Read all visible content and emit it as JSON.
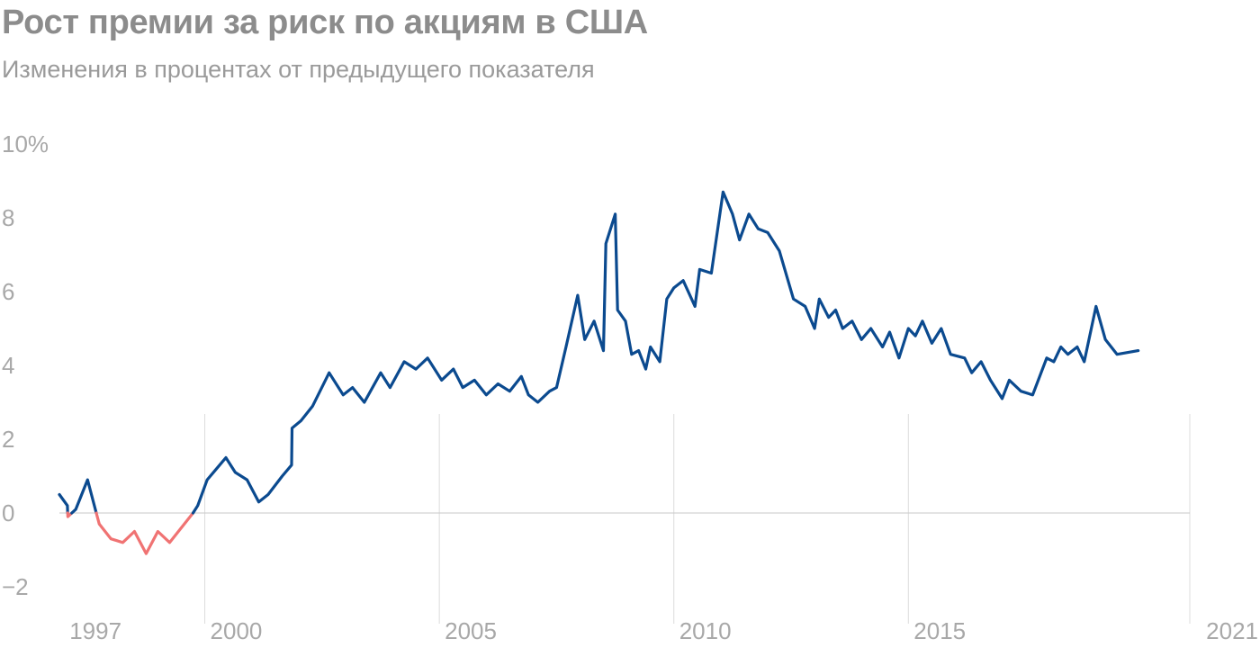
{
  "title": "Рост премии за риск по акциям в США",
  "subtitle": "Изменения в процентах от предыдущего показателя",
  "colors": {
    "positive": "#0b4a8f",
    "negative": "#f07373",
    "grid": "#dcdcdc",
    "zero_line": "#c8c8c8",
    "text": "#a8a8a8"
  },
  "chart_data": {
    "type": "line",
    "title": "Рост премии за риск по акциям в США",
    "subtitle": "Изменения в процентах от предыдущего показателя",
    "xlabel": "",
    "ylabel": "",
    "xlim": [
      1996.9,
      2021.0
    ],
    "ylim": [
      -3,
      10
    ],
    "y_ticks": [
      10,
      8,
      6,
      4,
      2,
      0,
      -2
    ],
    "y_tick_labels": [
      "10%",
      "8",
      "6",
      "4",
      "2",
      "0",
      "−2"
    ],
    "x_ticks": [
      1997,
      2000,
      2005,
      2010,
      2015,
      2021
    ],
    "x_tick_labels": [
      "1997",
      "2000",
      "2005",
      "2010",
      "2015",
      "2021"
    ],
    "grid": "vertical at labeled years",
    "legend": "none",
    "color_rule": "blue when value ≥ 0, red when value < 0",
    "series": [
      {
        "x": [
          1996.9,
          1997.07,
          1997.08,
          1997.25,
          1997.5,
          1997.75,
          1998.0,
          1998.25,
          1998.5,
          1998.75,
          1999.0,
          1999.25,
          1999.5,
          1999.75,
          1999.85,
          2000.05,
          2000.25,
          2000.45,
          2000.65,
          2000.9,
          2001.15,
          2001.35,
          2001.65,
          2001.85,
          2001.86,
          2002.05,
          2002.3,
          2002.65,
          2002.95,
          2003.15,
          2003.4,
          2003.75,
          2003.95,
          2004.25,
          2004.5,
          2004.75,
          2005.05,
          2005.3,
          2005.5,
          2005.75,
          2006.0,
          2006.25,
          2006.5,
          2006.75,
          2006.9,
          2007.1,
          2007.35,
          2007.5,
          2007.7,
          2007.95,
          2008.1,
          2008.3,
          2008.5,
          2008.55,
          2008.75,
          2008.8,
          2008.97,
          2009.1,
          2009.25,
          2009.4,
          2009.5,
          2009.7,
          2009.85,
          2010.0,
          2010.2,
          2010.45,
          2010.55,
          2010.8,
          2011.05,
          2011.25,
          2011.4,
          2011.6,
          2011.8,
          2012.0,
          2012.25,
          2012.55,
          2012.8,
          2013.0,
          2013.1,
          2013.3,
          2013.45,
          2013.6,
          2013.8,
          2014.0,
          2014.2,
          2014.45,
          2014.6,
          2014.8,
          2015.0,
          2015.15,
          2015.3,
          2015.5,
          2015.7,
          2015.9,
          2016.2,
          2016.35,
          2016.55,
          2016.75,
          2017.0,
          2017.15,
          2017.4,
          2017.65,
          2017.95,
          2018.1,
          2018.25,
          2018.4,
          2018.6,
          2018.75,
          2019.0,
          2019.2,
          2019.45,
          2019.9
        ],
        "y": [
          0.5,
          0.2,
          -0.1,
          0.1,
          0.9,
          -0.3,
          -0.7,
          -0.8,
          -0.5,
          -1.1,
          -0.5,
          -0.8,
          -0.4,
          0.0,
          0.2,
          0.9,
          1.2,
          1.5,
          1.1,
          0.9,
          0.3,
          0.5,
          1.0,
          1.3,
          2.3,
          2.5,
          2.9,
          3.8,
          3.2,
          3.4,
          3.0,
          3.8,
          3.4,
          4.1,
          3.9,
          4.2,
          3.6,
          3.9,
          3.4,
          3.6,
          3.2,
          3.5,
          3.3,
          3.7,
          3.2,
          3.0,
          3.3,
          3.4,
          4.5,
          5.9,
          4.7,
          5.2,
          4.4,
          7.3,
          8.1,
          5.5,
          5.2,
          4.3,
          4.4,
          3.9,
          4.5,
          4.1,
          5.8,
          6.1,
          6.3,
          5.6,
          6.6,
          6.5,
          8.7,
          8.1,
          7.4,
          8.1,
          7.7,
          7.6,
          7.1,
          5.8,
          5.6,
          5.0,
          5.8,
          5.3,
          5.5,
          5.0,
          5.2,
          4.7,
          5.0,
          4.5,
          4.9,
          4.2,
          5.0,
          4.8,
          5.2,
          4.6,
          5.0,
          4.3,
          4.2,
          3.8,
          4.1,
          3.6,
          3.1,
          3.6,
          3.3,
          3.2,
          4.2,
          4.1,
          4.5,
          4.3,
          4.5,
          4.1,
          5.6,
          4.7,
          4.3,
          4.4
        ]
      }
    ]
  }
}
